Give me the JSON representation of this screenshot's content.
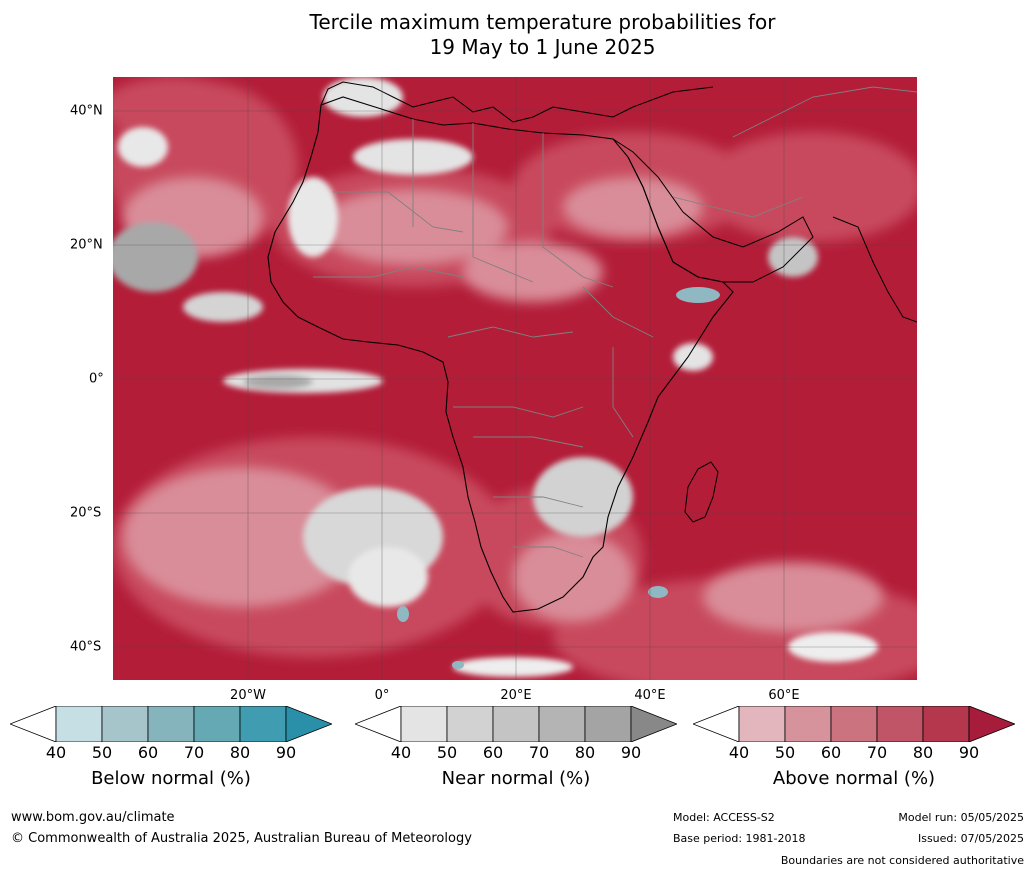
{
  "title": {
    "line1": "Tercile maximum temperature probabilities for",
    "line2": "19 May to 1 June 2025"
  },
  "map": {
    "lat_labels": [
      "40°N",
      "20°N",
      "0°",
      "20°S",
      "40°S"
    ],
    "lon_labels": [
      "20°W",
      "0°",
      "20°E",
      "40°E",
      "60°E"
    ],
    "colors": {
      "above_dominant": "#b31d38",
      "above_mid": "#c84a5d",
      "above_light": "#d98d99",
      "near": "#c8c8c8",
      "below": "#8fb8c3",
      "country_border": "#808080",
      "coastline": "#000000"
    }
  },
  "colorbars": [
    {
      "id": "below",
      "title": "Below normal (%)",
      "ticks": [
        "40",
        "50",
        "60",
        "70",
        "80",
        "90"
      ],
      "colors": [
        "#ffffff",
        "#c6dfe5",
        "#a6c5cb",
        "#86b4bd",
        "#65a9b5",
        "#409cb0",
        "#2a8fa8"
      ]
    },
    {
      "id": "near",
      "title": "Near normal (%)",
      "ticks": [
        "40",
        "50",
        "60",
        "70",
        "80",
        "90"
      ],
      "colors": [
        "#ffffff",
        "#e4e4e4",
        "#d2d2d2",
        "#c4c4c4",
        "#b4b4b4",
        "#a4a4a4",
        "#888888"
      ]
    },
    {
      "id": "above",
      "title": "Above normal (%)",
      "ticks": [
        "40",
        "50",
        "60",
        "70",
        "80",
        "90"
      ],
      "colors": [
        "#ffffff",
        "#e2b6bc",
        "#d6939c",
        "#cb7480",
        "#bf5566",
        "#b4374d",
        "#a71c3b"
      ]
    }
  ],
  "footer": {
    "website": "www.bom.gov.au/climate",
    "copyright": "© Commonwealth of Australia 2025, Australian Bureau of Meteorology",
    "model": "Model: ACCESS-S2",
    "base_period": "Base period: 1981-2018",
    "model_run": "Model run: 05/05/2025",
    "issued": "Issued: 07/05/2025",
    "disclaimer": "Boundaries are not considered authoritative"
  }
}
